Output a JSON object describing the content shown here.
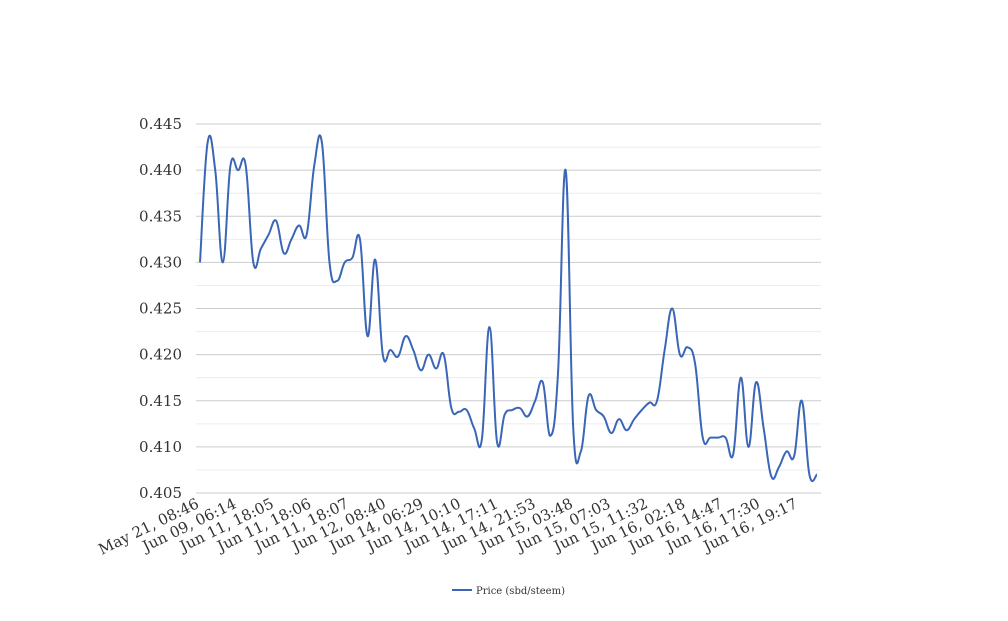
{
  "chart_data": {
    "type": "line",
    "title": "",
    "xlabel": "",
    "ylabel": "",
    "ylim": [
      0.405,
      0.445
    ],
    "yticks": [
      "0.405",
      "0.410",
      "0.415",
      "0.420",
      "0.425",
      "0.430",
      "0.435",
      "0.440",
      "0.445"
    ],
    "grid": true,
    "legend_position": "bottom",
    "x_tick_labels": [
      "May 21, 08:46",
      "Jun 09, 06:14",
      "Jun 11, 18:05",
      "Jun 11, 18:06",
      "Jun 11, 18:07",
      "Jun 12, 08:40",
      "Jun 14, 06:29",
      "Jun 14, 10:10",
      "Jun 14, 17:11",
      "Jun 14, 21:53",
      "Jun 15, 03:48",
      "Jun 15, 07:03",
      "Jun 15, 11:32",
      "Jun 16, 02:18",
      "Jun 16, 14:47",
      "Jun 16, 17:30",
      "Jun 16, 19:17"
    ],
    "series": [
      {
        "name": "Price (sbd/steem)",
        "color": "#3a66b7",
        "values": [
          0.43,
          0.443,
          0.44,
          0.43,
          0.4405,
          0.44,
          0.4405,
          0.43,
          0.4315,
          0.433,
          0.4345,
          0.431,
          0.4325,
          0.434,
          0.433,
          0.4405,
          0.443,
          0.43,
          0.428,
          0.43,
          0.4305,
          0.4325,
          0.422,
          0.4303,
          0.42,
          0.4205,
          0.4198,
          0.422,
          0.4205,
          0.4183,
          0.42,
          0.4185,
          0.42,
          0.4142,
          0.4138,
          0.414,
          0.412,
          0.4108,
          0.423,
          0.4105,
          0.4135,
          0.414,
          0.4142,
          0.4133,
          0.415,
          0.417,
          0.4112,
          0.418,
          0.44,
          0.412,
          0.4095,
          0.4155,
          0.414,
          0.4133,
          0.4115,
          0.413,
          0.4118,
          0.413,
          0.414,
          0.4148,
          0.415,
          0.4205,
          0.425,
          0.42,
          0.4208,
          0.419,
          0.411,
          0.411,
          0.411,
          0.411,
          0.4092,
          0.4175,
          0.41,
          0.417,
          0.412,
          0.4068,
          0.4078,
          0.4095,
          0.409,
          0.415,
          0.407,
          0.407
        ]
      }
    ]
  }
}
